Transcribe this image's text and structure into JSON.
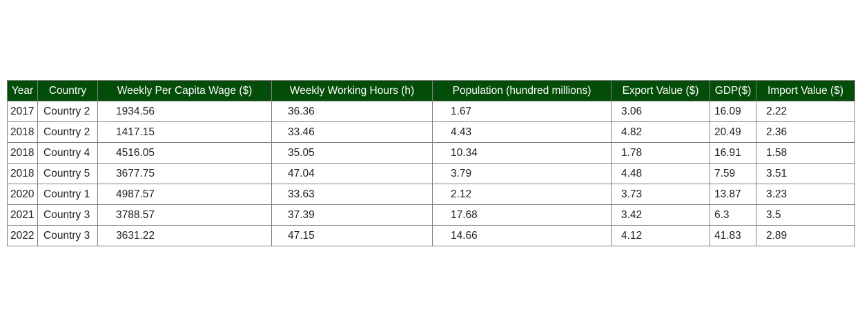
{
  "chart_data": {
    "type": "table",
    "header_bg": "#044d08",
    "header_fg": "#ffffff",
    "border_color": "#808080",
    "columns": [
      "Year",
      "Country",
      "Weekly Per Capita Wage ($)",
      "Weekly Working Hours (h)",
      "Population (hundred millions)",
      "Export Value ($)",
      "GDP($)",
      "Import Value ($)"
    ],
    "rows": [
      [
        "2017",
        "Country 2",
        "1934.56",
        "36.36",
        "1.67",
        "3.06",
        "16.09",
        "2.22"
      ],
      [
        "2018",
        "Country 2",
        "1417.15",
        "33.46",
        "4.43",
        "4.82",
        "20.49",
        "2.36"
      ],
      [
        "2018",
        "Country 4",
        "4516.05",
        "35.05",
        "10.34",
        "1.78",
        "16.91",
        "1.58"
      ],
      [
        "2018",
        "Country 5",
        "3677.75",
        "47.04",
        "3.79",
        "4.48",
        "7.59",
        "3.51"
      ],
      [
        "2020",
        "Country 1",
        "4987.57",
        "33.63",
        "2.12",
        "3.73",
        "13.87",
        "3.23"
      ],
      [
        "2021",
        "Country 3",
        "3788.57",
        "37.39",
        "17.68",
        "3.42",
        "6.3",
        "3.5"
      ],
      [
        "2022",
        "Country 3",
        "3631.22",
        "47.15",
        "14.66",
        "4.12",
        "41.83",
        "2.89"
      ]
    ]
  }
}
